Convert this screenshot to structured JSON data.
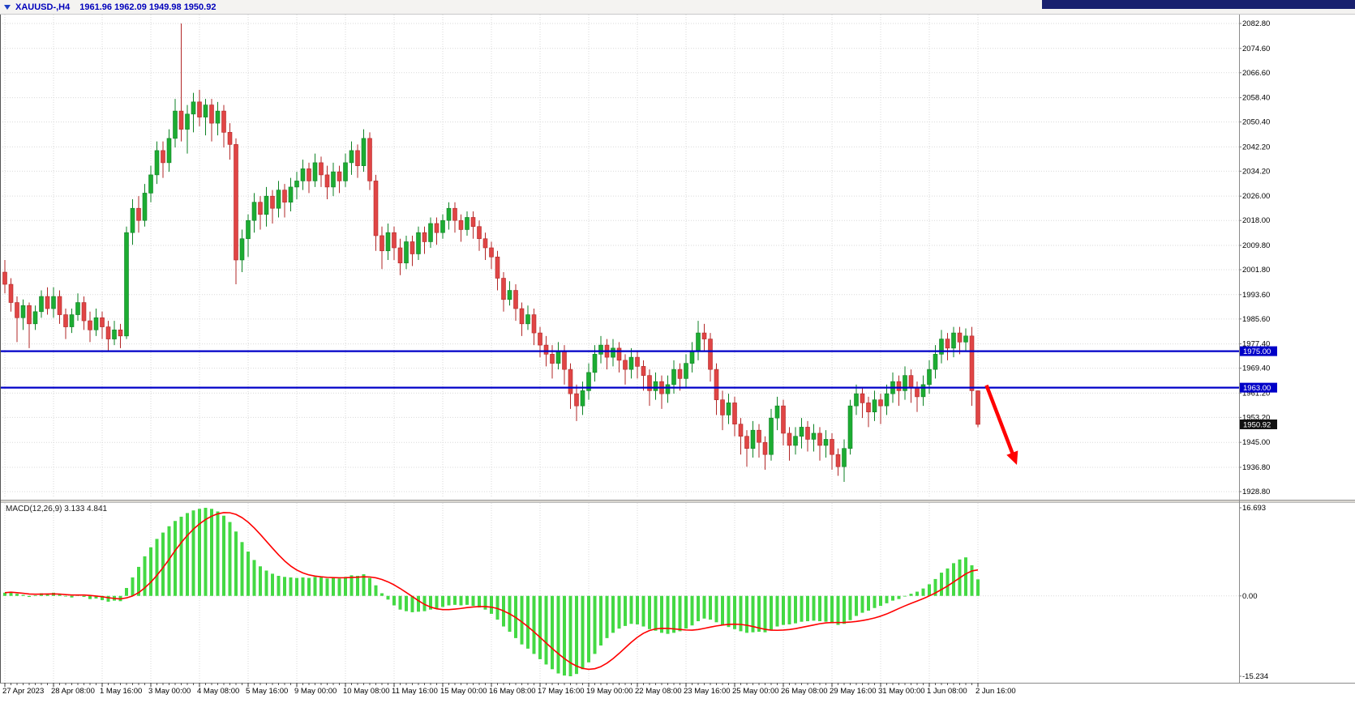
{
  "titlebar": {
    "symbol_period": "XAUUSD-,H4",
    "ohlc_values": "1961.96 1962.09 1949.98 1950.92"
  },
  "colors": {
    "background": "#ffffff",
    "grid": "#d9d9d9",
    "bull": "#1cac32",
    "bull_border": "#0e8224",
    "bear": "#e04545",
    "bear_border": "#b22727",
    "macd_histogram": "#44d944",
    "macd_signal": "#ff0000",
    "hline_blue": "#0000c8",
    "price_badge_black": "#111111",
    "arrow_red": "#ff0000",
    "axis_text": "#000000",
    "titlebar_text": "#0000bb",
    "window_strip": "#18206e"
  },
  "chart_data": {
    "type": "candlestick",
    "title": "XAUUSD-,H4",
    "symbol": "XAUUSD-",
    "timeframe": "H4",
    "ohlc_current": {
      "open": 1961.96,
      "high": 1962.09,
      "low": 1949.98,
      "close": 1950.92
    },
    "price_axis": {
      "min": 1928.8,
      "max": 2082.8,
      "labels": [
        "2082.80",
        "2074.60",
        "2066.60",
        "2058.40",
        "2050.40",
        "2042.20",
        "2034.20",
        "2026.00",
        "2018.00",
        "2009.80",
        "2001.80",
        "1993.60",
        "1985.60",
        "1977.40",
        "1969.40",
        "1961.20",
        "1953.20",
        "1945.00",
        "1936.80",
        "1928.80"
      ]
    },
    "time_axis": {
      "bars_per_label": 8,
      "labels": [
        "27 Apr 2023",
        "28 Apr 08:00",
        "1 May 16:00",
        "3 May 00:00",
        "4 May 08:00",
        "5 May 16:00",
        "9 May 00:00",
        "10 May 08:00",
        "11 May 16:00",
        "15 May 00:00",
        "16 May 08:00",
        "17 May 16:00",
        "19 May 00:00",
        "22 May 08:00",
        "23 May 16:00",
        "25 May 00:00",
        "26 May 08:00",
        "29 May 16:00",
        "31 May 00:00",
        "1 Jun 08:00",
        "2 Jun 16:00"
      ]
    },
    "horizontal_lines": [
      {
        "label": "1975.00",
        "price": 1975.0
      },
      {
        "label": "1963.00",
        "price": 1963.0
      }
    ],
    "current_price": {
      "label": "1950.92",
      "price": 1950.92
    },
    "trend_arrow": {
      "from_bar": 161.4,
      "from_price": 1963.8,
      "to_bar": 166.4,
      "to_price": 1937.6
    },
    "candles": [
      [
        2001,
        2005,
        1994,
        1997
      ],
      [
        1997,
        1999,
        1988,
        1991
      ],
      [
        1991,
        1993,
        1978,
        1986
      ],
      [
        1986,
        1992,
        1982,
        1990
      ],
      [
        1990,
        1991,
        1976,
        1984
      ],
      [
        1984,
        1990,
        1982,
        1988
      ],
      [
        1988,
        1995,
        1986,
        1993
      ],
      [
        1993,
        1996,
        1987,
        1989
      ],
      [
        1989,
        1996,
        1986,
        1993
      ],
      [
        1993,
        1995,
        1984,
        1987
      ],
      [
        1987,
        1989,
        1979,
        1983
      ],
      [
        1983,
        1989,
        1981,
        1987
      ],
      [
        1987,
        1994,
        1985,
        1991
      ],
      [
        1991,
        1993,
        1982,
        1985
      ],
      [
        1985,
        1988,
        1978,
        1982
      ],
      [
        1982,
        1989,
        1980,
        1986
      ],
      [
        1986,
        1988,
        1979,
        1983
      ],
      [
        1983,
        1985,
        1975,
        1979
      ],
      [
        1979,
        1985,
        1977,
        1982
      ],
      [
        1982,
        1984,
        1976,
        1980
      ],
      [
        1980,
        2016,
        1979,
        2014
      ],
      [
        2014,
        2025,
        2010,
        2022
      ],
      [
        2022,
        2026,
        2014,
        2018
      ],
      [
        2018,
        2030,
        2016,
        2027
      ],
      [
        2027,
        2036,
        2024,
        2033
      ],
      [
        2033,
        2044,
        2030,
        2041
      ],
      [
        2041,
        2044,
        2032,
        2037
      ],
      [
        2037,
        2048,
        2034,
        2045
      ],
      [
        2045,
        2058,
        2042,
        2054
      ],
      [
        2054,
        2082.8,
        2044,
        2048
      ],
      [
        2048,
        2056,
        2040,
        2053
      ],
      [
        2053,
        2060,
        2047,
        2057
      ],
      [
        2057,
        2061,
        2049,
        2052
      ],
      [
        2052,
        2058,
        2046,
        2056
      ],
      [
        2056,
        2058,
        2044,
        2050
      ],
      [
        2050,
        2057,
        2046,
        2054
      ],
      [
        2054,
        2056,
        2042,
        2047
      ],
      [
        2047,
        2050,
        2038,
        2043
      ],
      [
        2043,
        2045,
        1997,
        2005
      ],
      [
        2005,
        2015,
        2001,
        2012
      ],
      [
        2012,
        2020,
        2006,
        2018
      ],
      [
        2018,
        2027,
        2014,
        2024
      ],
      [
        2024,
        2026,
        2015,
        2020
      ],
      [
        2020,
        2029,
        2016,
        2026
      ],
      [
        2026,
        2028,
        2017,
        2022
      ],
      [
        2022,
        2031,
        2019,
        2028
      ],
      [
        2028,
        2030,
        2019,
        2024
      ],
      [
        2024,
        2032,
        2021,
        2029
      ],
      [
        2029,
        2034,
        2025,
        2031
      ],
      [
        2031,
        2038,
        2028,
        2035
      ],
      [
        2035,
        2037,
        2027,
        2031
      ],
      [
        2031,
        2040,
        2029,
        2037
      ],
      [
        2037,
        2039,
        2029,
        2033
      ],
      [
        2033,
        2036,
        2025,
        2029
      ],
      [
        2029,
        2037,
        2026,
        2034
      ],
      [
        2034,
        2036,
        2027,
        2031
      ],
      [
        2031,
        2040,
        2029,
        2037
      ],
      [
        2037,
        2044,
        2033,
        2041
      ],
      [
        2041,
        2043,
        2032,
        2036
      ],
      [
        2036,
        2048,
        2034,
        2045
      ],
      [
        2045,
        2047,
        2028,
        2031
      ],
      [
        2031,
        2033,
        2008,
        2013
      ],
      [
        2013,
        2016,
        2002,
        2008
      ],
      [
        2008,
        2017,
        2005,
        2014
      ],
      [
        2014,
        2016,
        2005,
        2009
      ],
      [
        2009,
        2012,
        2000,
        2004
      ],
      [
        2004,
        2013,
        2002,
        2011
      ],
      [
        2011,
        2013,
        2003,
        2007
      ],
      [
        2007,
        2016,
        2005,
        2014
      ],
      [
        2014,
        2016,
        2007,
        2011
      ],
      [
        2011,
        2019,
        2009,
        2017
      ],
      [
        2017,
        2019,
        2010,
        2014
      ],
      [
        2014,
        2020,
        2012,
        2018
      ],
      [
        2018,
        2024,
        2015,
        2022
      ],
      [
        2022,
        2024,
        2014,
        2018
      ],
      [
        2018,
        2020,
        2011,
        2015
      ],
      [
        2015,
        2021,
        2013,
        2019
      ],
      [
        2019,
        2021,
        2012,
        2016
      ],
      [
        2016,
        2018,
        2008,
        2012
      ],
      [
        2012,
        2014,
        2005,
        2009
      ],
      [
        2009,
        2011,
        2002,
        2006
      ],
      [
        2006,
        2008,
        1995,
        1999
      ],
      [
        1999,
        2001,
        1988,
        1992
      ],
      [
        1992,
        1998,
        1990,
        1995
      ],
      [
        1995,
        1997,
        1985,
        1989
      ],
      [
        1989,
        1991,
        1980,
        1984
      ],
      [
        1984,
        1990,
        1982,
        1987
      ],
      [
        1987,
        1989,
        1977,
        1981
      ],
      [
        1981,
        1983,
        1973,
        1977
      ],
      [
        1977,
        1980,
        1970,
        1974
      ],
      [
        1974,
        1977,
        1966,
        1971
      ],
      [
        1971,
        1978,
        1969,
        1975
      ],
      [
        1975,
        1977,
        1964,
        1969
      ],
      [
        1969,
        1971,
        1956,
        1961
      ],
      [
        1961,
        1964,
        1952,
        1957
      ],
      [
        1957,
        1965,
        1954,
        1962
      ],
      [
        1962,
        1971,
        1959,
        1968
      ],
      [
        1968,
        1977,
        1965,
        1974
      ],
      [
        1974,
        1980,
        1971,
        1977
      ],
      [
        1977,
        1979,
        1969,
        1973
      ],
      [
        1973,
        1979,
        1970,
        1976
      ],
      [
        1976,
        1978,
        1968,
        1972
      ],
      [
        1972,
        1974,
        1964,
        1969
      ],
      [
        1969,
        1976,
        1966,
        1973
      ],
      [
        1973,
        1975,
        1966,
        1970
      ],
      [
        1970,
        1972,
        1962,
        1967
      ],
      [
        1967,
        1969,
        1957,
        1962
      ],
      [
        1962,
        1968,
        1959,
        1965
      ],
      [
        1965,
        1967,
        1956,
        1961
      ],
      [
        1961,
        1967,
        1958,
        1964
      ],
      [
        1964,
        1972,
        1961,
        1969
      ],
      [
        1969,
        1971,
        1962,
        1966
      ],
      [
        1966,
        1974,
        1963,
        1971
      ],
      [
        1971,
        1978,
        1968,
        1975
      ],
      [
        1975,
        1985,
        1972,
        1981
      ],
      [
        1981,
        1984,
        1975,
        1979
      ],
      [
        1979,
        1981,
        1965,
        1969
      ],
      [
        1969,
        1971,
        1954,
        1959
      ],
      [
        1959,
        1962,
        1949,
        1954
      ],
      [
        1954,
        1961,
        1951,
        1958
      ],
      [
        1958,
        1960,
        1947,
        1951
      ],
      [
        1951,
        1953,
        1941,
        1947
      ],
      [
        1947,
        1949,
        1937,
        1943
      ],
      [
        1943,
        1952,
        1940,
        1949
      ],
      [
        1949,
        1951,
        1940,
        1945
      ],
      [
        1945,
        1947,
        1936,
        1941
      ],
      [
        1941,
        1956,
        1939,
        1953
      ],
      [
        1953,
        1960,
        1949,
        1957
      ],
      [
        1957,
        1959,
        1944,
        1948
      ],
      [
        1948,
        1950,
        1939,
        1944
      ],
      [
        1944,
        1950,
        1941,
        1947
      ],
      [
        1947,
        1953,
        1943,
        1950
      ],
      [
        1950,
        1952,
        1942,
        1946
      ],
      [
        1946,
        1951,
        1942,
        1948
      ],
      [
        1948,
        1950,
        1939,
        1944
      ],
      [
        1944,
        1949,
        1940,
        1946
      ],
      [
        1946,
        1948,
        1936,
        1941
      ],
      [
        1941,
        1943,
        1934,
        1937
      ],
      [
        1937,
        1946,
        1932,
        1943
      ],
      [
        1943,
        1959,
        1941,
        1957
      ],
      [
        1957,
        1964,
        1954,
        1961
      ],
      [
        1961,
        1963,
        1953,
        1958
      ],
      [
        1958,
        1960,
        1950,
        1955
      ],
      [
        1955,
        1962,
        1952,
        1959
      ],
      [
        1959,
        1961,
        1951,
        1957
      ],
      [
        1957,
        1964,
        1954,
        1961
      ],
      [
        1961,
        1968,
        1958,
        1965
      ],
      [
        1965,
        1967,
        1957,
        1962
      ],
      [
        1962,
        1970,
        1959,
        1967
      ],
      [
        1967,
        1969,
        1958,
        1963
      ],
      [
        1963,
        1965,
        1955,
        1960
      ],
      [
        1960,
        1967,
        1957,
        1964
      ],
      [
        1964,
        1972,
        1961,
        1969
      ],
      [
        1969,
        1977,
        1966,
        1974
      ],
      [
        1974,
        1982,
        1971,
        1979
      ],
      [
        1979,
        1981,
        1972,
        1976
      ],
      [
        1976,
        1983,
        1973,
        1981
      ],
      [
        1981,
        1983,
        1974,
        1978
      ],
      [
        1978,
        1982.5,
        1975,
        1980
      ],
      [
        1980,
        1983,
        1957,
        1962
      ],
      [
        1961.96,
        1962.09,
        1949.98,
        1950.92
      ]
    ],
    "macd": {
      "label_text": "MACD(12,26,9) 3.133 4.841",
      "name": "MACD(12,26,9)",
      "main_value": 3.133,
      "signal_value": 4.841,
      "min": -15.234,
      "max": 16.693,
      "axis_labels": [
        "16.693",
        "0.00",
        "-15.234"
      ],
      "signal_period": 9,
      "histogram": [
        0.6,
        0.8,
        0.4,
        0.2,
        -0.2,
        0.1,
        0.5,
        0.4,
        0.6,
        0.3,
        -0.1,
        -0.3,
        0.2,
        -0.2,
        -0.6,
        -0.5,
        -0.8,
        -1.1,
        -0.9,
        -1.0,
        1.5,
        3.5,
        5.5,
        7.5,
        9.2,
        10.8,
        12.0,
        13.2,
        14.2,
        15.0,
        15.7,
        16.2,
        16.5,
        16.693,
        16.5,
        16.0,
        15.2,
        14.0,
        12.2,
        10.2,
        8.4,
        6.8,
        5.6,
        4.8,
        4.2,
        3.8,
        3.6,
        3.5,
        3.4,
        3.5,
        3.4,
        3.6,
        3.5,
        3.3,
        3.4,
        3.3,
        3.6,
        3.9,
        3.8,
        4.1,
        3.4,
        2.0,
        0.5,
        -0.7,
        -1.8,
        -2.6,
        -2.9,
        -3.1,
        -3.0,
        -2.9,
        -2.6,
        -2.4,
        -2.1,
        -1.8,
        -1.7,
        -1.8,
        -1.7,
        -1.9,
        -2.2,
        -2.6,
        -3.4,
        -4.5,
        -5.8,
        -6.8,
        -8.0,
        -9.2,
        -10.0,
        -11.0,
        -12.0,
        -13.0,
        -13.9,
        -14.7,
        -15.1,
        -15.234,
        -14.8,
        -13.9,
        -12.6,
        -11.0,
        -9.4,
        -8.0,
        -7.0,
        -6.2,
        -5.7,
        -5.3,
        -5.4,
        -5.8,
        -6.3,
        -6.6,
        -7.0,
        -7.2,
        -7.0,
        -6.7,
        -6.2,
        -5.6,
        -4.8,
        -4.3,
        -4.5,
        -5.0,
        -5.6,
        -5.9,
        -6.3,
        -6.7,
        -7.0,
        -6.9,
        -6.8,
        -6.9,
        -6.4,
        -5.8,
        -5.5,
        -5.4,
        -5.2,
        -4.9,
        -4.8,
        -4.7,
        -4.8,
        -4.9,
        -5.2,
        -5.5,
        -5.3,
        -4.6,
        -3.8,
        -3.2,
        -2.8,
        -2.3,
        -1.9,
        -1.4,
        -0.9,
        -0.6,
        -0.1,
        0.4,
        0.8,
        1.4,
        2.2,
        3.2,
        4.4,
        5.2,
        6.2,
        6.9,
        7.3,
        5.8,
        3.133
      ]
    }
  }
}
